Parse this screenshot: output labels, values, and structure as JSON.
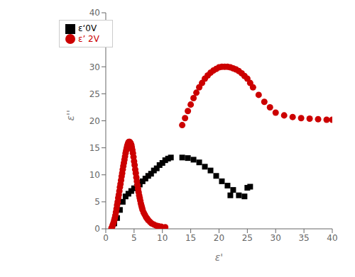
{
  "chart_data": {
    "type": "scatter",
    "xlabel": "ε'",
    "ylabel": "ε''",
    "xlim": [
      0,
      40
    ],
    "ylim": [
      0,
      40
    ],
    "xticks": [
      0,
      5,
      10,
      15,
      20,
      25,
      30,
      35,
      40
    ],
    "yticks": [
      0,
      5,
      10,
      15,
      20,
      25,
      30,
      35,
      40
    ],
    "grid": false,
    "legend": "upper left",
    "series": [
      {
        "name": "ε‘0V",
        "color": "#000000",
        "marker": "square",
        "x": [
          1.5,
          2.0,
          2.5,
          3.0,
          3.5,
          4.0,
          4.5,
          5.0,
          5.5,
          6.0,
          6.5,
          7.0,
          7.5,
          8.0,
          8.5,
          9.0,
          9.5,
          10.0,
          10.5,
          11.0,
          11.5,
          13.5,
          14.5,
          15.5,
          16.5,
          17.5,
          18.5,
          19.5,
          20.5,
          21.5,
          22.5,
          23.5,
          24.5,
          25.5,
          22.0,
          25.0
        ],
        "values": [
          1.0,
          2.0,
          3.5,
          5.0,
          6.0,
          6.5,
          7.0,
          7.5,
          7.8,
          8.2,
          8.8,
          9.3,
          9.8,
          10.2,
          10.8,
          11.2,
          11.8,
          12.2,
          12.7,
          13.0,
          13.2,
          13.2,
          13.1,
          12.8,
          12.3,
          11.5,
          10.8,
          9.8,
          8.8,
          8.0,
          7.2,
          6.2,
          6.0,
          7.8,
          6.2,
          7.6
        ]
      },
      {
        "name": "ε’ 2V",
        "color": "#cc0000",
        "marker": "circle",
        "x": [
          1.1,
          1.2,
          1.3,
          1.4,
          1.5,
          1.6,
          1.7,
          1.8,
          1.9,
          2.0,
          2.1,
          2.2,
          2.3,
          2.4,
          2.5,
          2.6,
          2.7,
          2.8,
          2.9,
          3.0,
          3.1,
          3.2,
          3.3,
          3.4,
          3.5,
          3.6,
          3.7,
          3.8,
          3.9,
          4.0,
          4.1,
          4.2,
          4.3,
          4.4,
          4.5,
          4.5,
          4.6,
          4.7,
          4.8,
          4.9,
          5.0,
          5.1,
          5.2,
          5.3,
          5.4,
          5.5,
          5.6,
          5.7,
          5.8,
          5.9,
          6.0,
          6.1,
          6.2,
          6.3,
          6.4,
          6.5,
          6.7,
          6.9,
          7.1,
          7.3,
          7.5,
          7.8,
          8.1,
          8.5,
          8.9,
          9.3,
          9.8,
          10.5,
          1.0,
          13.5,
          14.0,
          14.5,
          15.0,
          15.5,
          16.0,
          16.5,
          17.0,
          17.5,
          18.0,
          18.5,
          19.0,
          19.5,
          20.0,
          20.5,
          21.0,
          21.5,
          22.0,
          22.5,
          23.0,
          23.5,
          24.0,
          24.5,
          25.0,
          25.5,
          26.0,
          27.0,
          28.0,
          29.0,
          30.0,
          31.5,
          33.0,
          34.5,
          36.0,
          37.5,
          39.0,
          40.0
        ],
        "values": [
          0.3,
          0.6,
          0.9,
          1.2,
          1.6,
          2.0,
          2.5,
          3.1,
          3.7,
          4.4,
          5.0,
          5.7,
          6.3,
          7.0,
          7.7,
          8.3,
          9.0,
          9.7,
          10.3,
          11.0,
          11.6,
          12.2,
          12.8,
          13.4,
          14.0,
          14.5,
          15.0,
          15.4,
          15.7,
          16.0,
          16.1,
          16.1,
          16.0,
          15.8,
          15.5,
          15.5,
          15.1,
          14.6,
          14.0,
          13.3,
          12.5,
          11.8,
          11.0,
          10.3,
          9.5,
          8.8,
          8.1,
          7.4,
          6.8,
          6.2,
          5.7,
          5.2,
          4.7,
          4.3,
          3.9,
          3.5,
          3.0,
          2.6,
          2.2,
          1.9,
          1.6,
          1.3,
          1.0,
          0.8,
          0.6,
          0.5,
          0.4,
          0.3,
          0.1,
          19.2,
          20.5,
          21.8,
          23.0,
          24.2,
          25.2,
          26.2,
          27.0,
          27.8,
          28.4,
          28.9,
          29.3,
          29.6,
          29.9,
          30.0,
          30.0,
          30.0,
          29.9,
          29.7,
          29.5,
          29.2,
          28.8,
          28.3,
          27.8,
          27.0,
          26.2,
          24.8,
          23.5,
          22.5,
          21.5,
          21.0,
          20.7,
          20.5,
          20.4,
          20.3,
          20.2,
          20.2
        ]
      }
    ]
  }
}
